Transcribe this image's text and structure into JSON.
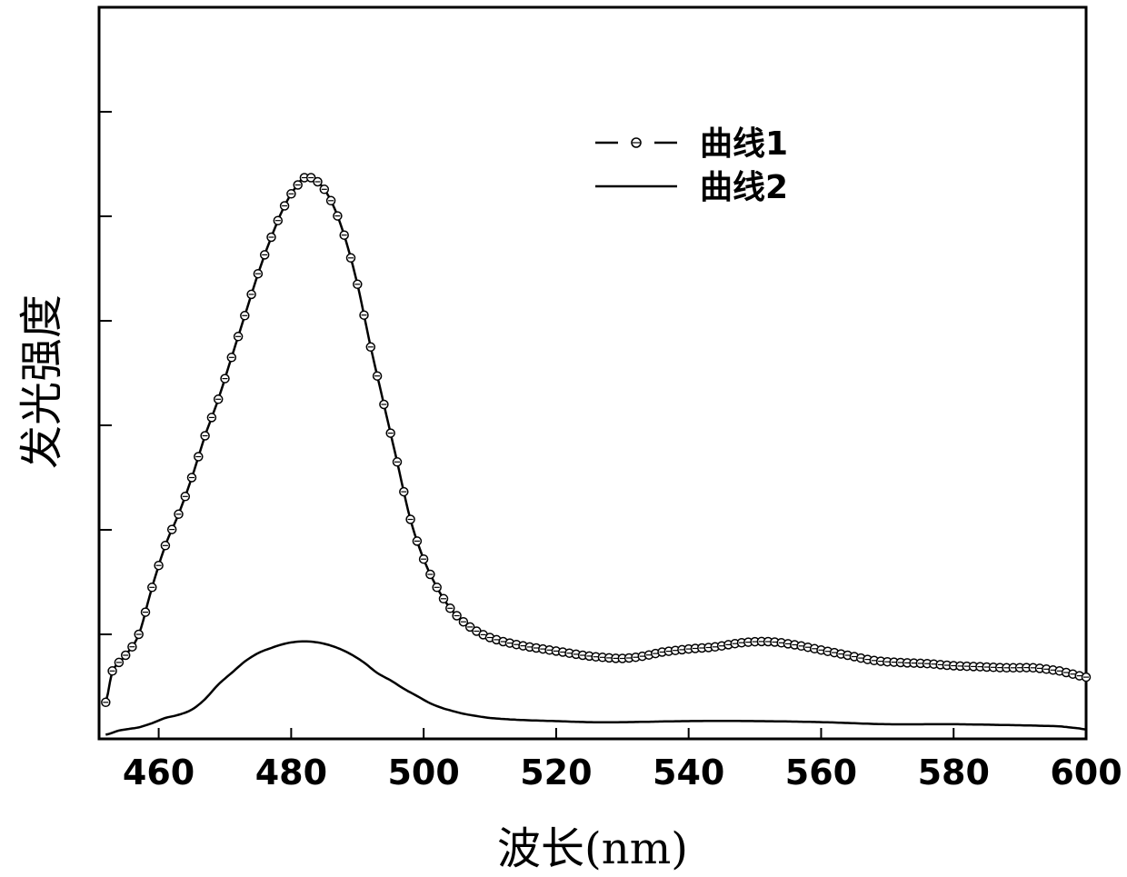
{
  "chart_data": {
    "type": "line",
    "title": "",
    "xlabel": "波长(nm)",
    "ylabel": "发光强度",
    "xlim": [
      451,
      600
    ],
    "ylim": [
      0,
      7
    ],
    "x_ticks": [
      460,
      480,
      500,
      520,
      540,
      560,
      580,
      600
    ],
    "y_ticks": [
      1,
      2,
      3,
      4,
      5,
      6
    ],
    "y_tick_labels_shown": false,
    "grid": false,
    "legend": "top-center",
    "series": [
      {
        "name": "曲线1",
        "marker": "circle",
        "points": [
          [
            452,
            0.35
          ],
          [
            453,
            0.65
          ],
          [
            455,
            0.8
          ],
          [
            457,
            1.0
          ],
          [
            459,
            1.45
          ],
          [
            461,
            1.85
          ],
          [
            463,
            2.15
          ],
          [
            465,
            2.5
          ],
          [
            467,
            2.9
          ],
          [
            469,
            3.25
          ],
          [
            471,
            3.65
          ],
          [
            473,
            4.05
          ],
          [
            475,
            4.45
          ],
          [
            477,
            4.8
          ],
          [
            479,
            5.1
          ],
          [
            481,
            5.3
          ],
          [
            482,
            5.37
          ],
          [
            483,
            5.37
          ],
          [
            484,
            5.33
          ],
          [
            486,
            5.15
          ],
          [
            488,
            4.82
          ],
          [
            490,
            4.35
          ],
          [
            492,
            3.75
          ],
          [
            494,
            3.2
          ],
          [
            496,
            2.65
          ],
          [
            498,
            2.1
          ],
          [
            500,
            1.72
          ],
          [
            502,
            1.45
          ],
          [
            504,
            1.25
          ],
          [
            506,
            1.12
          ],
          [
            508,
            1.03
          ],
          [
            510,
            0.97
          ],
          [
            512,
            0.93
          ],
          [
            515,
            0.89
          ],
          [
            518,
            0.86
          ],
          [
            521,
            0.83
          ],
          [
            524,
            0.8
          ],
          [
            527,
            0.78
          ],
          [
            530,
            0.77
          ],
          [
            533,
            0.79
          ],
          [
            536,
            0.83
          ],
          [
            540,
            0.86
          ],
          [
            544,
            0.88
          ],
          [
            548,
            0.92
          ],
          [
            552,
            0.93
          ],
          [
            556,
            0.9
          ],
          [
            560,
            0.85
          ],
          [
            564,
            0.8
          ],
          [
            568,
            0.75
          ],
          [
            572,
            0.73
          ],
          [
            576,
            0.72
          ],
          [
            580,
            0.7
          ],
          [
            584,
            0.69
          ],
          [
            588,
            0.68
          ],
          [
            592,
            0.68
          ],
          [
            596,
            0.65
          ],
          [
            598,
            0.62
          ],
          [
            600,
            0.59
          ]
        ]
      },
      {
        "name": "曲线2",
        "marker": "none",
        "points": [
          [
            452,
            0.04
          ],
          [
            454,
            0.08
          ],
          [
            457,
            0.11
          ],
          [
            459,
            0.15
          ],
          [
            461,
            0.2
          ],
          [
            463,
            0.23
          ],
          [
            465,
            0.28
          ],
          [
            467,
            0.38
          ],
          [
            469,
            0.52
          ],
          [
            471,
            0.63
          ],
          [
            473,
            0.74
          ],
          [
            475,
            0.82
          ],
          [
            477,
            0.87
          ],
          [
            479,
            0.91
          ],
          [
            481,
            0.93
          ],
          [
            483,
            0.93
          ],
          [
            485,
            0.91
          ],
          [
            487,
            0.87
          ],
          [
            489,
            0.81
          ],
          [
            491,
            0.73
          ],
          [
            493,
            0.63
          ],
          [
            495,
            0.56
          ],
          [
            497,
            0.48
          ],
          [
            499,
            0.41
          ],
          [
            501,
            0.34
          ],
          [
            503,
            0.29
          ],
          [
            506,
            0.24
          ],
          [
            510,
            0.2
          ],
          [
            515,
            0.18
          ],
          [
            520,
            0.17
          ],
          [
            525,
            0.16
          ],
          [
            530,
            0.16
          ],
          [
            540,
            0.17
          ],
          [
            550,
            0.17
          ],
          [
            560,
            0.16
          ],
          [
            570,
            0.14
          ],
          [
            580,
            0.14
          ],
          [
            590,
            0.13
          ],
          [
            596,
            0.12
          ],
          [
            599,
            0.1
          ],
          [
            600,
            0.09
          ]
        ]
      }
    ]
  }
}
